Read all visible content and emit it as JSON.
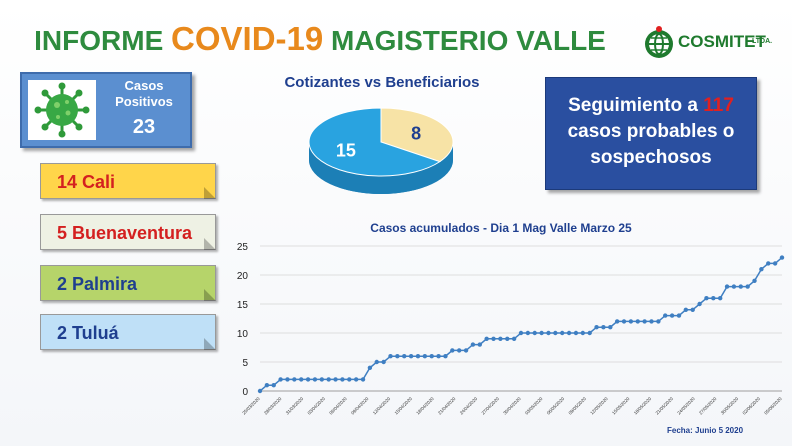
{
  "header": {
    "title_prefix": "INFORME ",
    "title_highlight": "COVID-19",
    "title_suffix": " MAGISTERIO VALLE",
    "logo_text": "COSMITET",
    "logo_suffix": "LTDA."
  },
  "positive_cases": {
    "label_line1": "Casos",
    "label_line2": "Positivos",
    "value": "23"
  },
  "cities": [
    {
      "text": "14 Cali",
      "bg": "#ffd54a",
      "color": "#d42020"
    },
    {
      "text": "5 Buenaventura",
      "bg": "#eef1e4",
      "color": "#d42020"
    },
    {
      "text": "2 Palmira",
      "bg": "#b6d46a",
      "color": "#1f3f8f"
    },
    {
      "text": "2 Tuluá",
      "bg": "#bfe0f7",
      "color": "#1f3f8f"
    }
  ],
  "pie": {
    "title": "Cotizantes vs Beneficiarios",
    "slices": [
      {
        "label": "15",
        "value": 15,
        "color": "#29a3e0"
      },
      {
        "label": "8",
        "value": 8,
        "color": "#f7e3a6"
      }
    ]
  },
  "followup": {
    "line1_prefix": "Seguimiento a ",
    "line1_number": "117",
    "line2": "casos probables  o",
    "line3": "sospechosos"
  },
  "chart_data": {
    "type": "line",
    "title": "Casos acumulados - Dia 1 Mag Valle Marzo 25",
    "ylim": [
      0,
      25
    ],
    "yticks": [
      0,
      5,
      10,
      15,
      20,
      25
    ],
    "grid": true,
    "color": "#3f7fc2",
    "xtick_labels": [
      "25/03/2020",
      "28/03/2020",
      "31/03/2020",
      "03/04/2020",
      "06/04/2020",
      "09/04/2020",
      "12/04/2020",
      "15/04/2020",
      "18/04/2020",
      "21/04/2020",
      "24/04/2020",
      "27/04/2020",
      "30/04/2020",
      "03/05/2020",
      "06/05/2020",
      "09/05/2020",
      "12/05/2020",
      "15/05/2020",
      "18/05/2020",
      "21/05/2020",
      "24/05/2020",
      "27/05/2020",
      "30/05/2020",
      "02/06/2020",
      "05/06/2020"
    ],
    "values": [
      0,
      1,
      1,
      2,
      2,
      2,
      2,
      2,
      2,
      2,
      2,
      2,
      2,
      2,
      2,
      2,
      4,
      5,
      5,
      6,
      6,
      6,
      6,
      6,
      6,
      6,
      6,
      6,
      7,
      7,
      7,
      8,
      8,
      9,
      9,
      9,
      9,
      9,
      10,
      10,
      10,
      10,
      10,
      10,
      10,
      10,
      10,
      10,
      10,
      11,
      11,
      11,
      12,
      12,
      12,
      12,
      12,
      12,
      12,
      13,
      13,
      13,
      14,
      14,
      15,
      16,
      16,
      16,
      18,
      18,
      18,
      18,
      19,
      21,
      22,
      22,
      23
    ]
  },
  "footer": {
    "date": "Fecha: Junio 5 2020"
  }
}
